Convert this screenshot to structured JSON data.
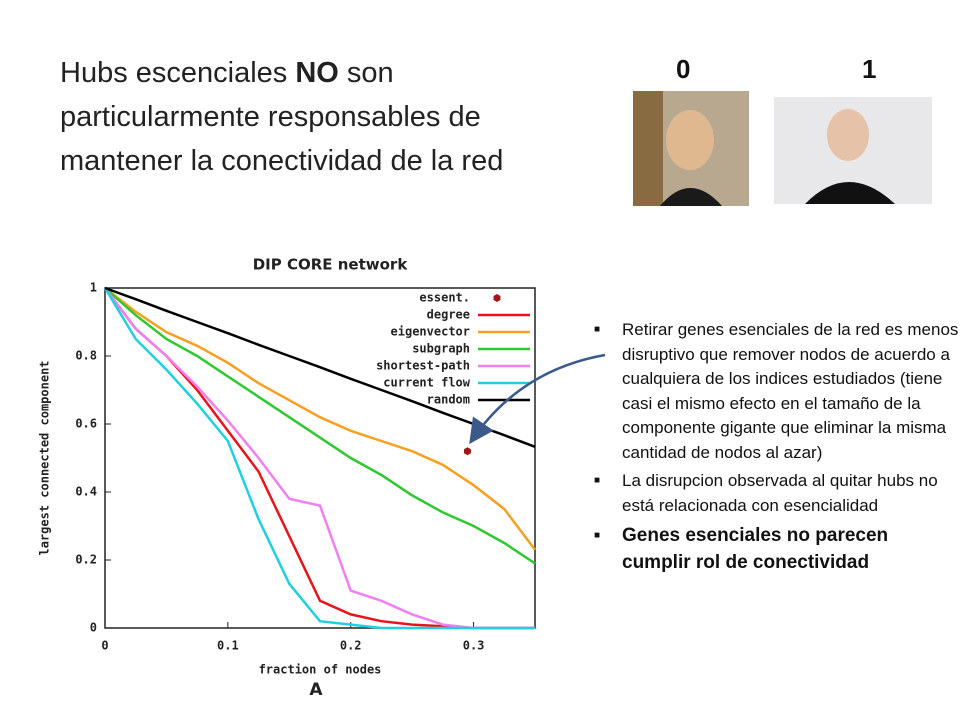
{
  "slide": {
    "title_pre": "Hubs escenciales",
    "title_bold": "NO",
    "title_post": "son",
    "title_line2": "particularmente responsables de",
    "title_line3": "mantener la conectividad de la red",
    "photo_labels": [
      "0",
      "1"
    ],
    "bullets": [
      "Retirar genes esenciales de la red es menos disruptivo que remover nodos de acuerdo a cualquiera de los indices estudiados (tiene  casi el mismo efecto en el tamaño de la componente gigante que eliminar la misma cantidad de nodos al azar)",
      "La disrupcion observada al quitar hubs no está relacionada con esencialidad",
      "Genes esenciales no  parecen cumplir rol de conectividad"
    ],
    "panel_label": "A"
  },
  "chart_data": {
    "type": "line",
    "title": "DIP CORE network",
    "x_label": "fraction of nodes",
    "y_label": "largest connected component",
    "xlim": [
      0,
      0.35
    ],
    "ylim": [
      0,
      1
    ],
    "xticks": [
      0,
      0.1,
      0.2,
      0.3
    ],
    "yticks": [
      0,
      0.2,
      0.4,
      0.6,
      0.8,
      1
    ],
    "x": [
      0,
      0.025,
      0.05,
      0.075,
      0.1,
      0.125,
      0.15,
      0.175,
      0.2,
      0.225,
      0.25,
      0.275,
      0.3,
      0.325,
      0.35
    ],
    "series": [
      {
        "name": "essent.",
        "color": "#a01818",
        "marker": true,
        "x": [
          0.295
        ],
        "values": [
          0.52
        ]
      },
      {
        "name": "degree",
        "color": "#e8141c",
        "values": [
          1,
          0.88,
          0.8,
          0.7,
          0.58,
          0.46,
          0.27,
          0.08,
          0.04,
          0.02,
          0.01,
          0.005,
          0,
          0,
          0
        ]
      },
      {
        "name": "eigenvector",
        "color": "#f5a020",
        "values": [
          1,
          0.93,
          0.87,
          0.83,
          0.78,
          0.72,
          0.67,
          0.62,
          0.58,
          0.55,
          0.52,
          0.48,
          0.42,
          0.35,
          0.23
        ]
      },
      {
        "name": "subgraph",
        "color": "#30c830",
        "values": [
          1,
          0.92,
          0.85,
          0.8,
          0.74,
          0.68,
          0.62,
          0.56,
          0.5,
          0.45,
          0.39,
          0.34,
          0.3,
          0.25,
          0.19
        ]
      },
      {
        "name": "shortest-path",
        "color": "#f080f0",
        "values": [
          1,
          0.88,
          0.8,
          0.71,
          0.61,
          0.5,
          0.38,
          0.36,
          0.11,
          0.08,
          0.04,
          0.01,
          0,
          0,
          0
        ]
      },
      {
        "name": "current flow",
        "color": "#20d0e0",
        "values": [
          1,
          0.85,
          0.76,
          0.66,
          0.55,
          0.32,
          0.13,
          0.02,
          0.01,
          0,
          0,
          0,
          0,
          0,
          0
        ]
      },
      {
        "name": "random",
        "color": "#000000",
        "values": [
          1,
          0.967,
          0.933,
          0.9,
          0.867,
          0.833,
          0.8,
          0.767,
          0.733,
          0.7,
          0.667,
          0.633,
          0.6,
          0.567,
          0.533
        ]
      }
    ]
  }
}
